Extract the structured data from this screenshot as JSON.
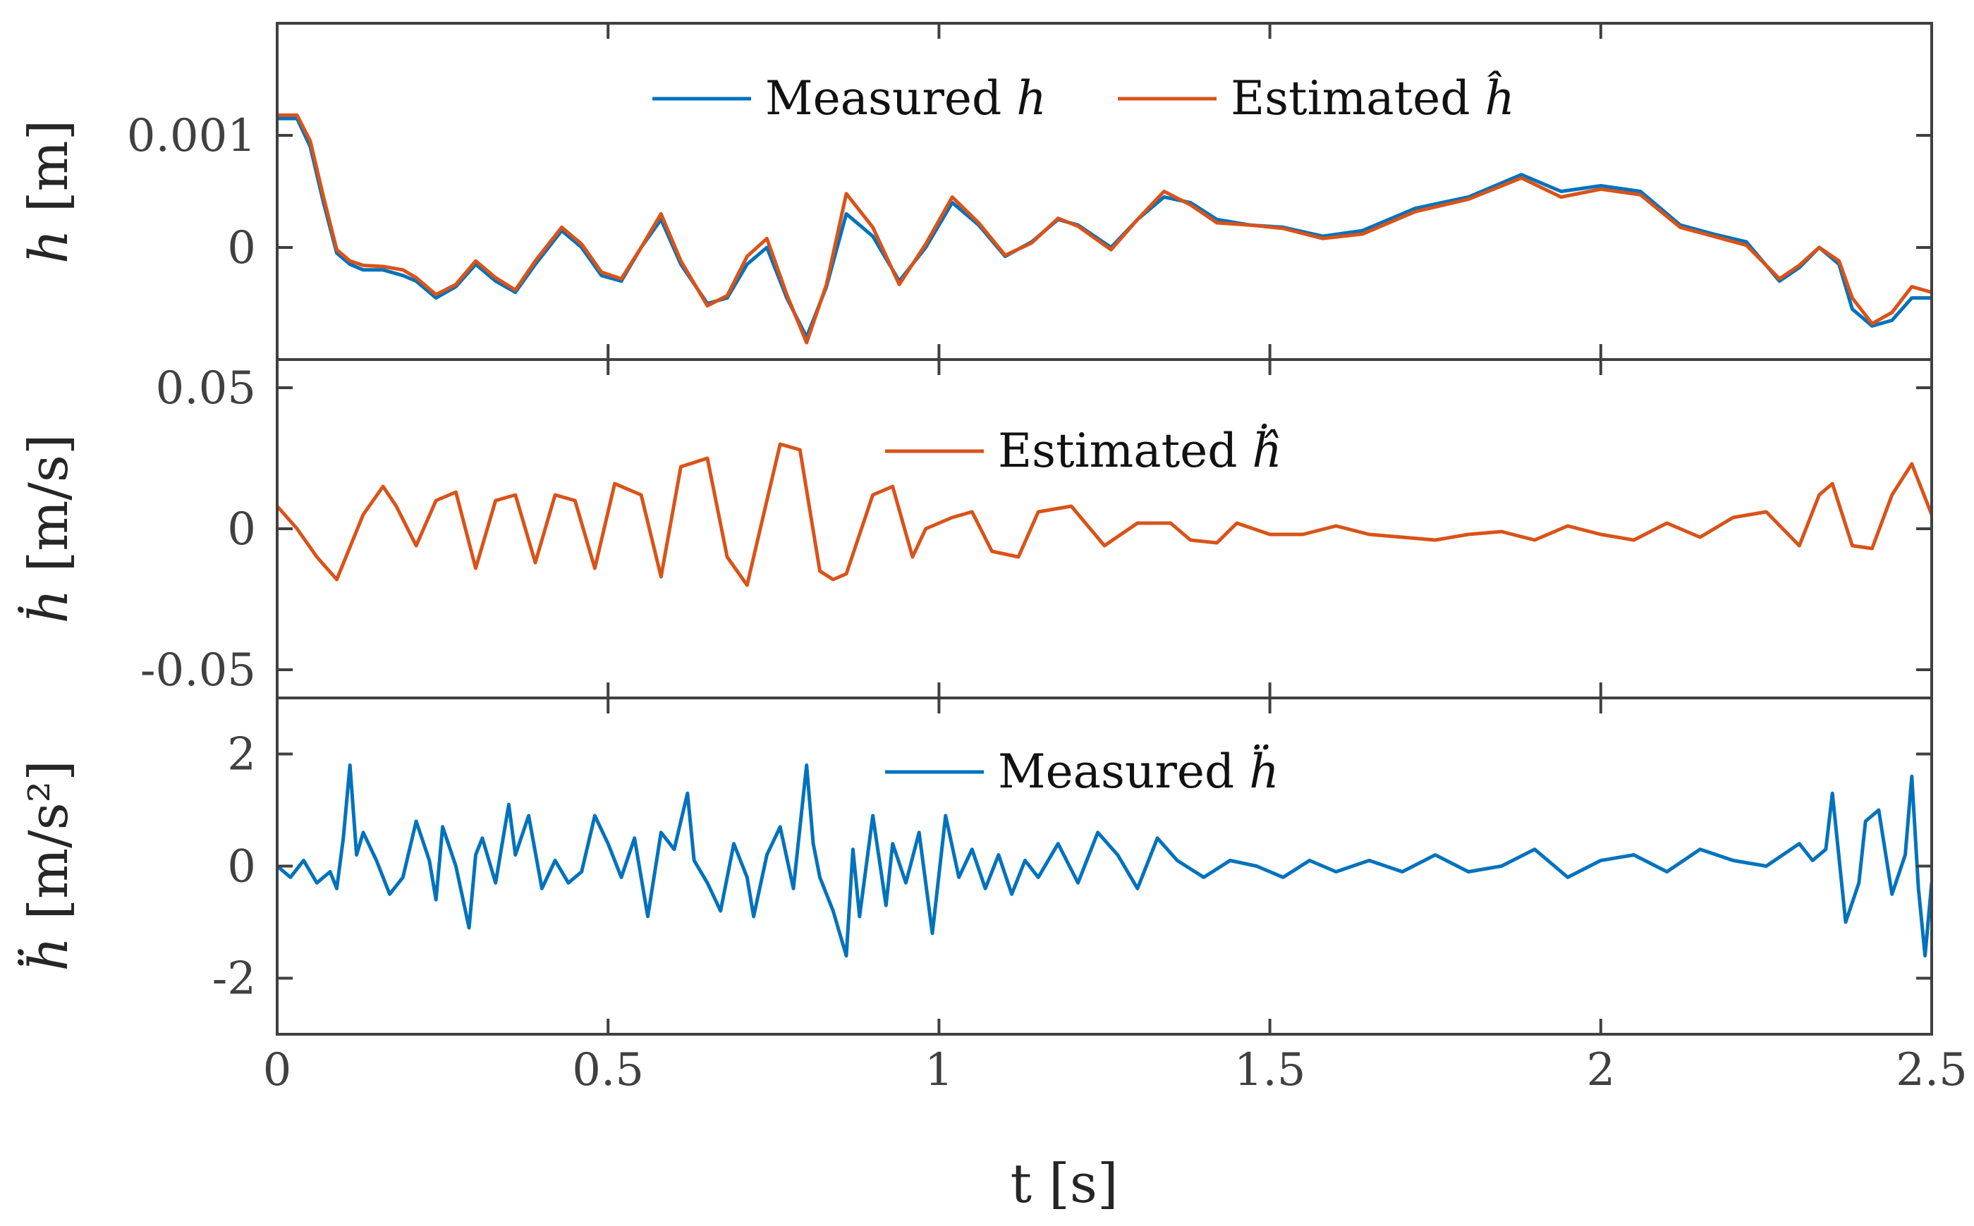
{
  "colors": {
    "blue": "#0072bd",
    "orange": "#d95319",
    "axis": "#404040"
  },
  "chart_data": [
    {
      "type": "line",
      "panel": "top",
      "ylabel_var": "h",
      "ylabel_unit": "[m]",
      "xlim": [
        0,
        2.5
      ],
      "ylim": [
        -0.001,
        0.002
      ],
      "yticks": [
        0,
        0.001
      ],
      "ytick_labels": [
        "0",
        "0.001"
      ],
      "grid": false,
      "legend": "top-center",
      "series": [
        {
          "name": "Measured h",
          "name_text": "Measured",
          "name_var": "h",
          "color": "#0072bd",
          "x": [
            0,
            0.03,
            0.05,
            0.07,
            0.09,
            0.11,
            0.13,
            0.16,
            0.19,
            0.21,
            0.24,
            0.27,
            0.3,
            0.33,
            0.36,
            0.39,
            0.43,
            0.46,
            0.49,
            0.52,
            0.55,
            0.58,
            0.61,
            0.65,
            0.68,
            0.71,
            0.74,
            0.77,
            0.8,
            0.83,
            0.86,
            0.9,
            0.94,
            0.98,
            1.02,
            1.06,
            1.1,
            1.14,
            1.18,
            1.21,
            1.26,
            1.3,
            1.34,
            1.38,
            1.42,
            1.47,
            1.52,
            1.58,
            1.64,
            1.72,
            1.8,
            1.88,
            1.94,
            2.0,
            2.06,
            2.12,
            2.17,
            2.22,
            2.27,
            2.3,
            2.33,
            2.36,
            2.38,
            2.41,
            2.44,
            2.47,
            2.5
          ],
          "y": [
            0.00115,
            0.00115,
            0.0009,
            0.0004,
            -5e-05,
            -0.00015,
            -0.0002,
            -0.0002,
            -0.00025,
            -0.0003,
            -0.00045,
            -0.00035,
            -0.00015,
            -0.0003,
            -0.0004,
            -0.00015,
            0.00015,
            0.0,
            -0.00025,
            -0.0003,
            0.0,
            0.00025,
            -0.00015,
            -0.0005,
            -0.00045,
            -0.00015,
            0.0,
            -0.00045,
            -0.0008,
            -0.00035,
            0.0003,
            0.0001,
            -0.0003,
            0.0,
            0.0004,
            0.0002,
            -8e-05,
            5e-05,
            0.00025,
            0.0002,
            0.0,
            0.00025,
            0.00045,
            0.0004,
            0.00025,
            0.0002,
            0.00018,
            0.0001,
            0.00015,
            0.00035,
            0.00045,
            0.00065,
            0.0005,
            0.00055,
            0.0005,
            0.0002,
            0.00012,
            5e-05,
            -0.0003,
            -0.00018,
            0.0,
            -0.00015,
            -0.00055,
            -0.0007,
            -0.00065,
            -0.00045,
            -0.00045
          ]
        },
        {
          "name": "Estimated ĥ",
          "name_text": "Estimated",
          "name_var": "ĥ",
          "color": "#d95319",
          "x": [
            0,
            0.03,
            0.05,
            0.07,
            0.09,
            0.11,
            0.13,
            0.16,
            0.19,
            0.21,
            0.24,
            0.27,
            0.3,
            0.33,
            0.36,
            0.39,
            0.43,
            0.46,
            0.49,
            0.52,
            0.55,
            0.58,
            0.61,
            0.65,
            0.68,
            0.71,
            0.74,
            0.77,
            0.8,
            0.83,
            0.86,
            0.9,
            0.94,
            0.98,
            1.02,
            1.06,
            1.1,
            1.14,
            1.18,
            1.21,
            1.26,
            1.3,
            1.34,
            1.38,
            1.42,
            1.47,
            1.52,
            1.58,
            1.64,
            1.72,
            1.8,
            1.88,
            1.94,
            2.0,
            2.06,
            2.12,
            2.17,
            2.22,
            2.27,
            2.3,
            2.33,
            2.36,
            2.38,
            2.41,
            2.44,
            2.47,
            2.5
          ],
          "y": [
            0.00118,
            0.00118,
            0.00095,
            0.00045,
            -2e-05,
            -0.00012,
            -0.00016,
            -0.00017,
            -0.0002,
            -0.00027,
            -0.00042,
            -0.00033,
            -0.00012,
            -0.00027,
            -0.00038,
            -0.00012,
            0.00018,
            3e-05,
            -0.00022,
            -0.00028,
            0.0,
            0.0003,
            -0.00012,
            -0.00052,
            -0.00043,
            -8e-05,
            8e-05,
            -0.00042,
            -0.00085,
            -0.00033,
            0.00048,
            0.00018,
            -0.00033,
            3e-05,
            0.00045,
            0.00022,
            -7e-05,
            4e-05,
            0.00026,
            0.00019,
            -2e-05,
            0.00025,
            0.0005,
            0.00038,
            0.00022,
            0.0002,
            0.00017,
            8e-05,
            0.00012,
            0.00032,
            0.00043,
            0.00062,
            0.00045,
            0.00052,
            0.00047,
            0.00018,
            0.0001,
            2e-05,
            -0.00028,
            -0.00016,
            0.0,
            -0.00012,
            -0.00045,
            -0.00068,
            -0.00058,
            -0.00035,
            -0.0004
          ]
        }
      ]
    },
    {
      "type": "line",
      "panel": "middle",
      "ylabel_var": "ḣ",
      "ylabel_unit": "[m/s]",
      "xlim": [
        0,
        2.5
      ],
      "ylim": [
        -0.06,
        0.06
      ],
      "yticks": [
        -0.05,
        0,
        0.05
      ],
      "ytick_labels": [
        "-0.05",
        "0",
        "0.05"
      ],
      "grid": false,
      "legend": "top-center",
      "series": [
        {
          "name": "Estimated ḣ̂",
          "name_text": "Estimated",
          "name_var": "ḣ̂",
          "color": "#d95319",
          "x": [
            0,
            0.03,
            0.06,
            0.09,
            0.13,
            0.16,
            0.18,
            0.21,
            0.24,
            0.27,
            0.3,
            0.33,
            0.36,
            0.39,
            0.42,
            0.45,
            0.48,
            0.51,
            0.55,
            0.58,
            0.61,
            0.65,
            0.68,
            0.71,
            0.73,
            0.76,
            0.79,
            0.82,
            0.84,
            0.86,
            0.9,
            0.93,
            0.96,
            0.98,
            1.02,
            1.05,
            1.08,
            1.12,
            1.15,
            1.2,
            1.25,
            1.3,
            1.35,
            1.38,
            1.42,
            1.45,
            1.5,
            1.55,
            1.6,
            1.65,
            1.7,
            1.75,
            1.8,
            1.85,
            1.9,
            1.95,
            2.0,
            2.05,
            2.1,
            2.15,
            2.2,
            2.25,
            2.3,
            2.33,
            2.35,
            2.38,
            2.41,
            2.44,
            2.47,
            2.5
          ],
          "y": [
            0.008,
            0.0,
            -0.01,
            -0.018,
            0.005,
            0.015,
            0.008,
            -0.006,
            0.01,
            0.013,
            -0.014,
            0.01,
            0.012,
            -0.012,
            0.012,
            0.01,
            -0.014,
            0.016,
            0.012,
            -0.017,
            0.022,
            0.025,
            -0.01,
            -0.02,
            0.0,
            0.03,
            0.028,
            -0.015,
            -0.018,
            -0.016,
            0.012,
            0.015,
            -0.01,
            0.0,
            0.004,
            0.006,
            -0.008,
            -0.01,
            0.006,
            0.008,
            -0.006,
            0.002,
            0.002,
            -0.004,
            -0.005,
            0.002,
            -0.002,
            -0.002,
            0.001,
            -0.002,
            -0.003,
            -0.004,
            -0.002,
            -0.001,
            -0.004,
            0.001,
            -0.002,
            -0.004,
            0.002,
            -0.003,
            0.004,
            0.006,
            -0.006,
            0.012,
            0.016,
            -0.006,
            -0.007,
            0.012,
            0.023,
            0.005
          ]
        }
      ]
    },
    {
      "type": "line",
      "panel": "bottom",
      "ylabel_var": "ḧ",
      "ylabel_unit": "[m/s²]",
      "xlim": [
        0,
        2.5
      ],
      "ylim": [
        -3,
        3
      ],
      "yticks": [
        -2,
        0,
        2
      ],
      "ytick_labels": [
        "-2",
        "0",
        "2"
      ],
      "xticks": [
        0,
        0.5,
        1,
        1.5,
        2,
        2.5
      ],
      "xtick_labels": [
        "0",
        "0.5",
        "1",
        "1.5",
        "2",
        "2.5"
      ],
      "xlabel": "t [s]",
      "grid": false,
      "legend": "top-center",
      "series": [
        {
          "name": "Measured ḧ",
          "name_text": "Measured",
          "name_var": "ḧ",
          "color": "#0072bd",
          "x": [
            0,
            0.02,
            0.04,
            0.06,
            0.08,
            0.09,
            0.1,
            0.11,
            0.12,
            0.13,
            0.15,
            0.17,
            0.19,
            0.21,
            0.23,
            0.24,
            0.25,
            0.27,
            0.29,
            0.3,
            0.31,
            0.33,
            0.35,
            0.36,
            0.38,
            0.4,
            0.42,
            0.44,
            0.46,
            0.48,
            0.5,
            0.52,
            0.54,
            0.56,
            0.58,
            0.6,
            0.62,
            0.63,
            0.65,
            0.67,
            0.69,
            0.71,
            0.72,
            0.74,
            0.76,
            0.78,
            0.8,
            0.81,
            0.82,
            0.84,
            0.86,
            0.87,
            0.88,
            0.9,
            0.92,
            0.93,
            0.95,
            0.97,
            0.99,
            1.01,
            1.03,
            1.05,
            1.07,
            1.09,
            1.11,
            1.13,
            1.15,
            1.18,
            1.21,
            1.24,
            1.27,
            1.3,
            1.33,
            1.36,
            1.4,
            1.44,
            1.48,
            1.52,
            1.56,
            1.6,
            1.65,
            1.7,
            1.75,
            1.8,
            1.85,
            1.9,
            1.95,
            2.0,
            2.05,
            2.1,
            2.15,
            2.2,
            2.25,
            2.3,
            2.32,
            2.34,
            2.35,
            2.37,
            2.39,
            2.4,
            2.42,
            2.44,
            2.46,
            2.47,
            2.48,
            2.49,
            2.5
          ],
          "y": [
            0.0,
            -0.2,
            0.1,
            -0.3,
            -0.1,
            -0.4,
            0.5,
            1.8,
            0.2,
            0.6,
            0.1,
            -0.5,
            -0.2,
            0.8,
            0.1,
            -0.6,
            0.7,
            0.0,
            -1.1,
            0.2,
            0.5,
            -0.3,
            1.1,
            0.2,
            0.9,
            -0.4,
            0.1,
            -0.3,
            -0.1,
            0.9,
            0.4,
            -0.2,
            0.5,
            -0.9,
            0.6,
            0.3,
            1.3,
            0.1,
            -0.3,
            -0.8,
            0.4,
            -0.2,
            -0.9,
            0.2,
            0.7,
            -0.4,
            1.8,
            0.4,
            -0.2,
            -0.8,
            -1.6,
            0.3,
            -0.9,
            0.9,
            -0.7,
            0.4,
            -0.3,
            0.6,
            -1.2,
            0.9,
            -0.2,
            0.3,
            -0.4,
            0.2,
            -0.5,
            0.1,
            -0.2,
            0.4,
            -0.3,
            0.6,
            0.2,
            -0.4,
            0.5,
            0.1,
            -0.2,
            0.1,
            0.0,
            -0.2,
            0.1,
            -0.1,
            0.1,
            -0.1,
            0.2,
            -0.1,
            0.0,
            0.3,
            -0.2,
            0.1,
            0.2,
            -0.1,
            0.3,
            0.1,
            0.0,
            0.4,
            0.1,
            0.3,
            1.3,
            -1.0,
            -0.3,
            0.8,
            1.0,
            -0.5,
            0.2,
            1.6,
            -0.4,
            -1.6,
            -0.3
          ]
        }
      ]
    }
  ]
}
